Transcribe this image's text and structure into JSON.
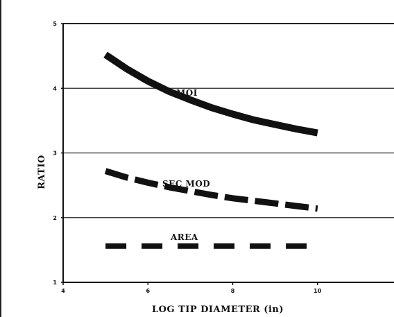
{
  "chart_data": {
    "type": "line",
    "xlabel": "LOG TIP DIAMETER (in)",
    "ylabel": "RATIO",
    "xlim": [
      4,
      12
    ],
    "ylim": [
      1,
      5
    ],
    "x_ticks": [
      "4",
      "6",
      "8",
      "10"
    ],
    "y_ticks": [
      "1",
      "2",
      "3",
      "4",
      "5"
    ],
    "grid": "horizontal",
    "series": [
      {
        "name": "MOI",
        "style": "solid",
        "x": [
          5,
          5.5,
          6,
          6.5,
          7,
          7.5,
          8,
          8.5,
          9,
          9.5,
          10
        ],
        "values": [
          4.52,
          4.3,
          4.11,
          3.95,
          3.82,
          3.7,
          3.6,
          3.51,
          3.44,
          3.37,
          3.31
        ]
      },
      {
        "name": "SEC MOD",
        "style": "dashed",
        "x": [
          5,
          5.5,
          6,
          6.5,
          7,
          7.5,
          8,
          8.5,
          9,
          9.5,
          10
        ],
        "values": [
          2.72,
          2.62,
          2.54,
          2.47,
          2.41,
          2.35,
          2.3,
          2.26,
          2.22,
          2.18,
          2.14
        ]
      },
      {
        "name": "AREA",
        "style": "dashed",
        "x": [
          5,
          10
        ],
        "values": [
          1.56,
          1.56
        ]
      }
    ],
    "colors": {
      "ink": "#111111",
      "grid": "#222222"
    }
  }
}
